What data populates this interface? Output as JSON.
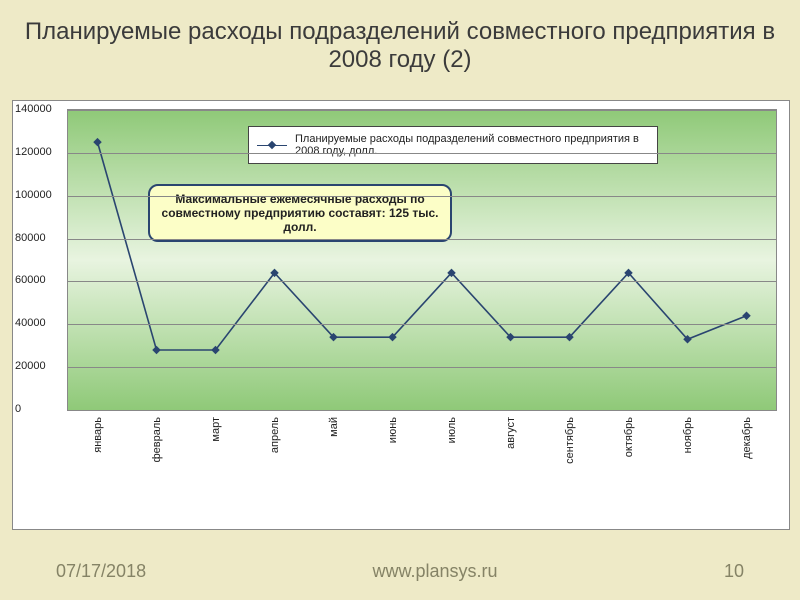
{
  "title": "Планируемые расходы  подразделений совместного предприятия в 2008 году (2)",
  "footer": {
    "date": "07/17/2018",
    "site": "www.plansys.ru",
    "page": "10"
  },
  "chart": {
    "type": "line",
    "legend_label": "Планируемые расходы  подразделений совместного предприятия в 2008 году, долл.",
    "callout_text": "Максимальные ежемесячные расходы по совместному предприятию составят: 125 тыс. долл.",
    "categories": [
      "январь",
      "февраль",
      "март",
      "апрель",
      "май",
      "июнь",
      "июль",
      "август",
      "сентябрь",
      "октябрь",
      "ноябрь",
      "декабрь"
    ],
    "values": [
      125000,
      28000,
      28000,
      64000,
      34000,
      34000,
      64000,
      34000,
      34000,
      64000,
      33000,
      44000
    ],
    "ylim": [
      0,
      140000
    ],
    "ytick_step": 20000,
    "yticks": [
      "0",
      "20000",
      "40000",
      "60000",
      "80000",
      "100000",
      "120000",
      "140000"
    ],
    "line_color": "#2a4570",
    "marker_color": "#2a4570",
    "marker_size": 6,
    "line_width": 1.6,
    "grid_color": "#888888",
    "plot_gradient": [
      "#8fc978",
      "#e8f4e0",
      "#8fc978"
    ],
    "chart_bg": "#ffffff",
    "slide_bg": "#eeeac7",
    "legend_bg": "#ffffff",
    "callout_bg": "#fcfec7",
    "callout_border": "#2a4570",
    "title_fontsize": 24,
    "label_fontsize": 11
  }
}
